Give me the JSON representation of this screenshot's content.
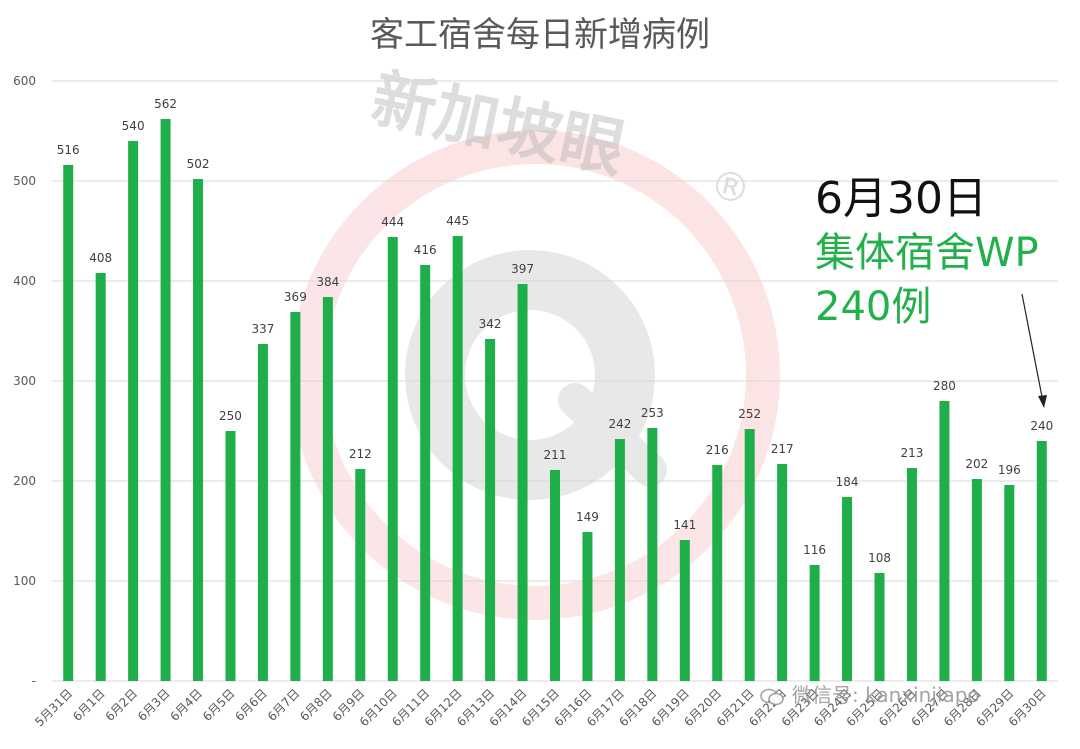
{
  "chart_data": {
    "type": "bar",
    "title": "客工宿舍每日新增病例",
    "categories": [
      "5月31日",
      "6月1日",
      "6月2日",
      "6月3日",
      "6月4日",
      "6月5日",
      "6月6日",
      "6月7日",
      "6月8日",
      "6月9日",
      "6月10日",
      "6月11日",
      "6月12日",
      "6月13日",
      "6月14日",
      "6月15日",
      "6月16日",
      "6月17日",
      "6月18日",
      "6月19日",
      "6月20日",
      "6月21日",
      "6月22日",
      "6月23日",
      "6月24日",
      "6月25日",
      "6月26日",
      "6月27日",
      "6月28日",
      "6月29日",
      "6月30日"
    ],
    "values": [
      516,
      408,
      540,
      562,
      502,
      250,
      337,
      369,
      384,
      212,
      444,
      416,
      445,
      342,
      397,
      211,
      149,
      242,
      253,
      141,
      216,
      252,
      217,
      116,
      184,
      108,
      213,
      280,
      202,
      196,
      240
    ],
    "ylim": [
      0,
      600
    ],
    "yticks": [
      "-",
      "100",
      "200",
      "300",
      "400",
      "500",
      "600"
    ],
    "xlabel": "",
    "ylabel": "",
    "grid": true,
    "bar_color": "#1fae4a",
    "annotation": {
      "date": "6月30日",
      "label": "集体宿舍WP",
      "count": "240例"
    }
  },
  "watermark": {
    "brand": "新加坡眼",
    "mark": "®",
    "wechat": "微信号: kanxinjiapo"
  },
  "colors": {
    "bar": "#1fae4a",
    "annotation_green": "#22b04b",
    "watermark_red": "#e9383a"
  }
}
